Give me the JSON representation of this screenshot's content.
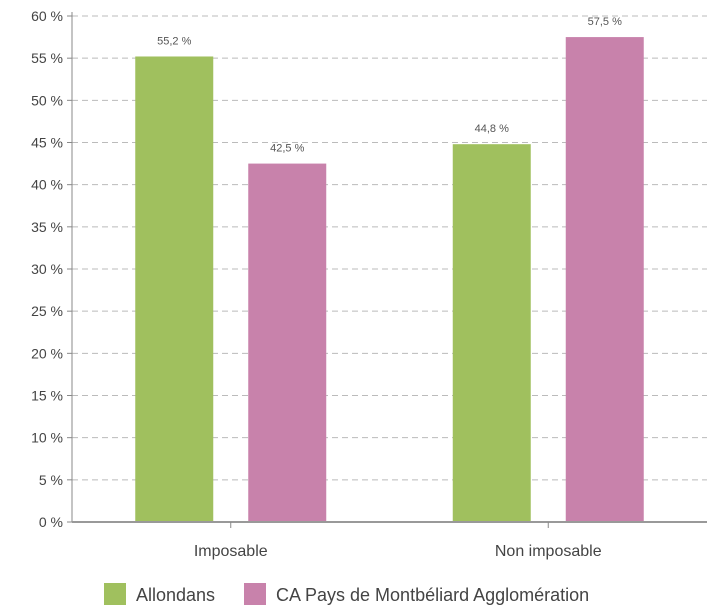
{
  "chart_data": {
    "type": "bar",
    "categories": [
      "Imposable",
      "Non imposable"
    ],
    "series": [
      {
        "name": "Allondans",
        "values": [
          55.2,
          44.8
        ],
        "color": "#a0c05e",
        "labels": [
          "55,2 %",
          "44,8 %"
        ]
      },
      {
        "name": "CA Pays de Montbéliard Agglomération",
        "values": [
          42.5,
          57.5
        ],
        "color": "#c882ab",
        "labels": [
          "42,5 %",
          "57,5 %"
        ]
      }
    ],
    "ylim": [
      0,
      60
    ],
    "yticks": [
      0,
      5,
      10,
      15,
      20,
      25,
      30,
      35,
      40,
      45,
      50,
      55,
      60
    ],
    "ytick_labels": [
      "0 %",
      "5 %",
      "10 %",
      "15 %",
      "20 %",
      "25 %",
      "30 %",
      "35 %",
      "40 %",
      "45 %",
      "50 %",
      "55 %",
      "60 %"
    ],
    "grid": true,
    "legend": "bottom"
  }
}
